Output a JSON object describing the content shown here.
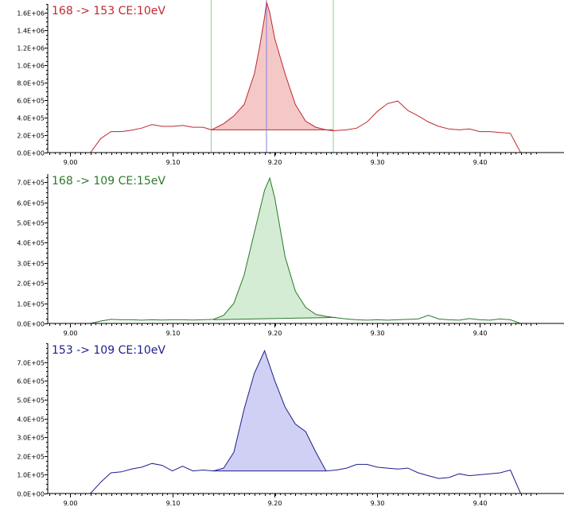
{
  "chart_data": [
    {
      "type": "area",
      "title": "168 -> 153 CE:10eV",
      "color": "#c0282c",
      "fill": "#f5c8c8",
      "ylim": [
        0,
        1700000
      ],
      "xlim": [
        8.98,
        9.455
      ],
      "yticks": [
        0,
        200000,
        400000,
        600000,
        800000,
        1000000,
        1200000,
        1400000,
        1600000
      ],
      "ytick_labels": [
        "0.0E+00",
        "2.0E+05",
        "4.0E+05",
        "6.0E+05",
        "8.0E+05",
        "1.0E+06",
        "1.2E+06",
        "1.4E+06",
        "1.6E+06"
      ],
      "xticks": [
        9.0,
        9.1,
        9.2,
        9.3,
        9.4
      ],
      "xtick_labels": [
        "9.00",
        "9.10",
        "9.20",
        "9.30",
        "9.40"
      ],
      "integration": {
        "start": 9.138,
        "end": 9.257,
        "base_start": 260000,
        "base_end": 260000
      },
      "markers": [
        {
          "x": 9.138,
          "color": "#90d090"
        },
        {
          "x": 9.257,
          "color": "#90d090"
        },
        {
          "x": 9.192,
          "color": "#8080e0"
        }
      ],
      "x": [
        9.02,
        9.03,
        9.04,
        9.05,
        9.06,
        9.07,
        9.08,
        9.09,
        9.1,
        9.11,
        9.12,
        9.13,
        9.138,
        9.15,
        9.16,
        9.17,
        9.18,
        9.185,
        9.19,
        9.192,
        9.195,
        9.2,
        9.21,
        9.22,
        9.23,
        9.24,
        9.25,
        9.257,
        9.27,
        9.28,
        9.29,
        9.3,
        9.31,
        9.32,
        9.33,
        9.34,
        9.35,
        9.36,
        9.37,
        9.38,
        9.39,
        9.4,
        9.41,
        9.42,
        9.43,
        9.44
      ],
      "y": [
        0,
        160000,
        240000,
        240000,
        255000,
        280000,
        320000,
        300000,
        300000,
        310000,
        290000,
        290000,
        260000,
        330000,
        420000,
        550000,
        900000,
        1200000,
        1550000,
        1720000,
        1600000,
        1300000,
        900000,
        550000,
        360000,
        290000,
        260000,
        250000,
        260000,
        280000,
        350000,
        470000,
        560000,
        590000,
        480000,
        420000,
        350000,
        300000,
        270000,
        260000,
        270000,
        240000,
        240000,
        230000,
        220000,
        0
      ]
    },
    {
      "type": "area",
      "title": "168 -> 109 CE:15eV",
      "color": "#2a7a2a",
      "fill": "#d4ebd4",
      "ylim": [
        0,
        740000
      ],
      "xlim": [
        8.98,
        9.455
      ],
      "yticks": [
        0,
        100000,
        200000,
        300000,
        400000,
        500000,
        600000,
        700000
      ],
      "ytick_labels": [
        "0.0E+00",
        "1.0E+05",
        "2.0E+05",
        "3.0E+05",
        "4.0E+05",
        "5.0E+05",
        "6.0E+05",
        "7.0E+05"
      ],
      "xticks": [
        9.0,
        9.1,
        9.2,
        9.3,
        9.4
      ],
      "xtick_labels": [
        "9.00",
        "9.10",
        "9.20",
        "9.30",
        "9.40"
      ],
      "integration": {
        "start": 9.14,
        "end": 9.26,
        "base_start": 18000,
        "base_end": 30000
      },
      "markers": [],
      "x": [
        9.02,
        9.03,
        9.04,
        9.05,
        9.06,
        9.07,
        9.08,
        9.09,
        9.1,
        9.11,
        9.12,
        9.13,
        9.14,
        9.15,
        9.16,
        9.17,
        9.18,
        9.19,
        9.195,
        9.2,
        9.21,
        9.22,
        9.23,
        9.24,
        9.25,
        9.26,
        9.27,
        9.28,
        9.29,
        9.3,
        9.31,
        9.32,
        9.33,
        9.34,
        9.35,
        9.36,
        9.37,
        9.38,
        9.39,
        9.4,
        9.41,
        9.42,
        9.43,
        9.44
      ],
      "y": [
        0,
        12000,
        20000,
        18000,
        18000,
        16000,
        18000,
        17000,
        18000,
        18000,
        17000,
        18000,
        20000,
        40000,
        100000,
        240000,
        450000,
        660000,
        720000,
        620000,
        330000,
        160000,
        80000,
        45000,
        35000,
        28000,
        22000,
        18000,
        16000,
        18000,
        16000,
        18000,
        20000,
        22000,
        40000,
        22000,
        18000,
        16000,
        24000,
        18000,
        16000,
        22000,
        18000,
        0
      ]
    },
    {
      "type": "area",
      "title": "153 -> 109 CE:10eV",
      "color": "#1e1e8c",
      "fill": "#d0d0f5",
      "ylim": [
        0,
        800000
      ],
      "xlim": [
        8.98,
        9.455
      ],
      "yticks": [
        0,
        100000,
        200000,
        300000,
        400000,
        500000,
        600000,
        700000
      ],
      "ytick_labels": [
        "0.0E+00",
        "1.0E+05",
        "2.0E+05",
        "3.0E+05",
        "4.0E+05",
        "5.0E+05",
        "6.0E+05",
        "7.0E+05"
      ],
      "xticks": [
        9.0,
        9.1,
        9.2,
        9.3,
        9.4
      ],
      "xtick_labels": [
        "9.00",
        "9.10",
        "9.20",
        "9.30",
        "9.40"
      ],
      "integration": {
        "start": 9.14,
        "end": 9.25,
        "base_start": 120000,
        "base_end": 120000
      },
      "markers": [],
      "x": [
        9.02,
        9.03,
        9.04,
        9.05,
        9.06,
        9.07,
        9.08,
        9.09,
        9.1,
        9.11,
        9.12,
        9.13,
        9.14,
        9.15,
        9.16,
        9.17,
        9.18,
        9.19,
        9.2,
        9.21,
        9.22,
        9.23,
        9.24,
        9.25,
        9.26,
        9.27,
        9.28,
        9.29,
        9.3,
        9.31,
        9.32,
        9.33,
        9.34,
        9.35,
        9.36,
        9.37,
        9.38,
        9.39,
        9.4,
        9.41,
        9.42,
        9.43,
        9.44
      ],
      "y": [
        0,
        60000,
        110000,
        115000,
        130000,
        140000,
        160000,
        150000,
        120000,
        145000,
        120000,
        125000,
        120000,
        135000,
        220000,
        450000,
        640000,
        760000,
        600000,
        460000,
        370000,
        330000,
        220000,
        120000,
        125000,
        135000,
        155000,
        155000,
        140000,
        135000,
        130000,
        135000,
        110000,
        95000,
        80000,
        85000,
        105000,
        95000,
        100000,
        105000,
        110000,
        125000,
        0
      ]
    }
  ]
}
